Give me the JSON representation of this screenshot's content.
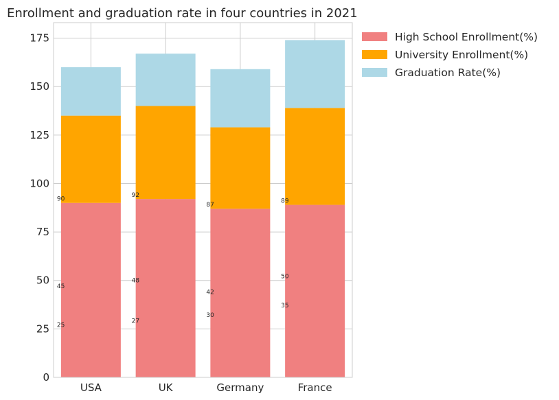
{
  "chart_data": {
    "type": "bar",
    "stacked": true,
    "title": "Enrollment and graduation rate in four countries in 2021",
    "xlabel": "",
    "ylabel": "",
    "categories": [
      "USA",
      "UK",
      "Germany",
      "France"
    ],
    "ylim": [
      0,
      183
    ],
    "yticks": [
      0,
      25,
      50,
      75,
      100,
      125,
      150,
      175
    ],
    "grid": true,
    "legend_position": "outside top-right",
    "series": [
      {
        "name": "High School Enrollment(%)",
        "values": [
          90,
          92,
          87,
          89
        ],
        "color": "#f08080"
      },
      {
        "name": "University Enrollment(%)",
        "values": [
          45,
          48,
          42,
          50
        ],
        "color": "#ffa500"
      },
      {
        "name": "Graduation Rate(%)",
        "values": [
          25,
          27,
          30,
          35
        ],
        "color": "#add8e6"
      }
    ],
    "annotations": [
      {
        "category": "USA",
        "labels": [
          "90",
          "45",
          "25"
        ],
        "y_values": [
          90,
          45,
          25
        ]
      },
      {
        "category": "UK",
        "labels": [
          "92",
          "48",
          "27"
        ],
        "y_values": [
          92,
          48,
          27
        ]
      },
      {
        "category": "Germany",
        "labels": [
          "87",
          "42",
          "30"
        ],
        "y_values": [
          87,
          42,
          30
        ]
      },
      {
        "category": "France",
        "labels": [
          "89",
          "50",
          "35"
        ],
        "y_values": [
          89,
          50,
          35
        ]
      }
    ]
  }
}
